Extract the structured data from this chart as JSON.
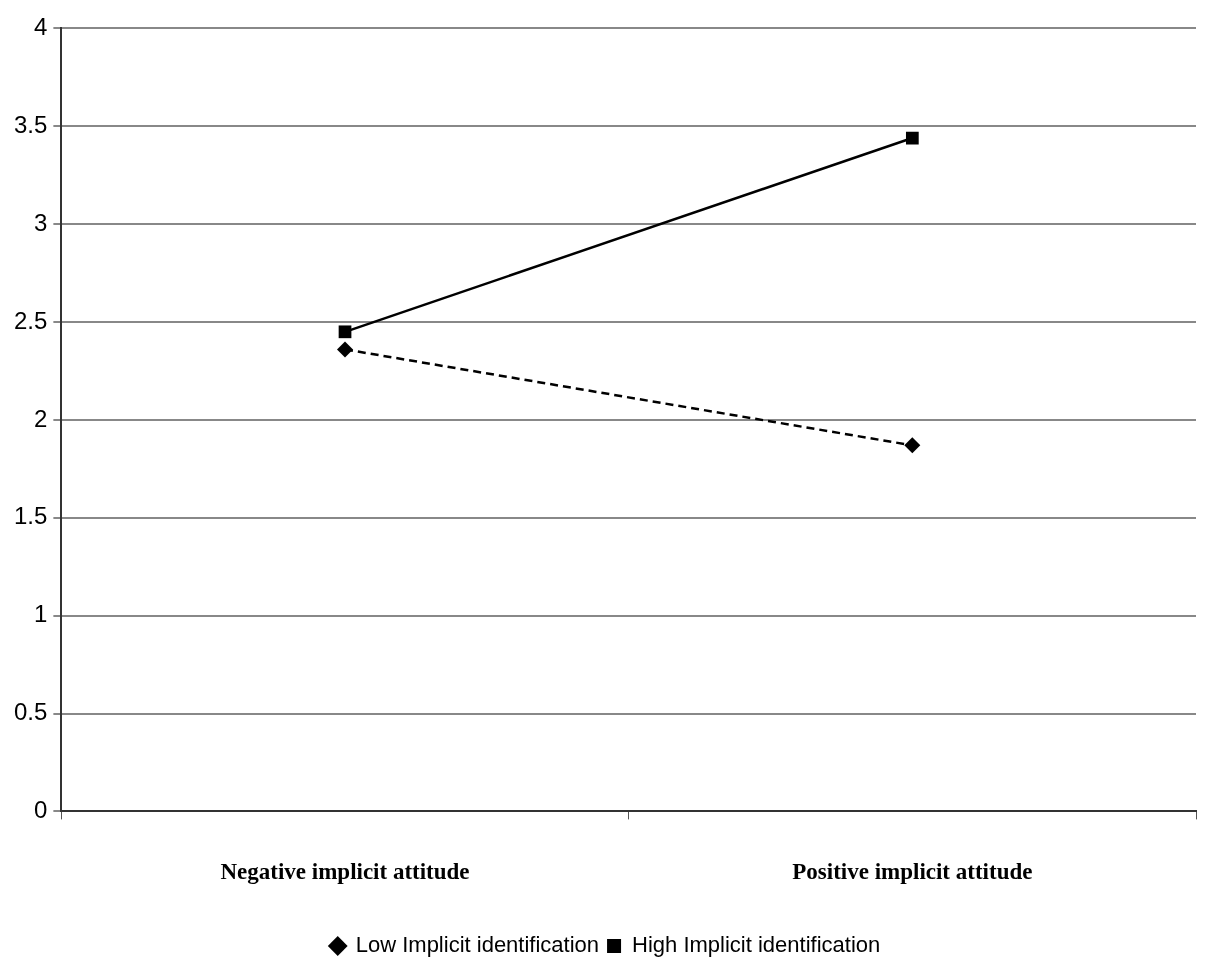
{
  "chart_data": {
    "type": "line",
    "categories": [
      "Negative implicit attitude",
      "Positive implicit attitude"
    ],
    "series": [
      {
        "name": "Low Implicit identification",
        "color": "#000000",
        "values": [
          2.36,
          1.87
        ],
        "marker": "diamond",
        "line_style": "dashed"
      },
      {
        "name": "High Implicit identification",
        "color": "#000000",
        "values": [
          2.45,
          3.44
        ],
        "marker": "square",
        "line_style": "solid"
      }
    ],
    "ylim": [
      0,
      4
    ],
    "yticks": [
      0,
      0.5,
      1,
      1.5,
      2,
      2.5,
      3,
      3.5,
      4
    ],
    "grid": "y",
    "legend": "bottom"
  }
}
